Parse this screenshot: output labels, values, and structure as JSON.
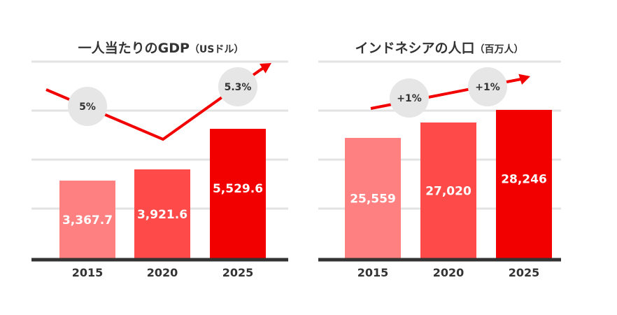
{
  "chart_data": [
    {
      "type": "bar",
      "title": "一人当たりのGDP",
      "unit": "（USドル）",
      "categories": [
        "2015",
        "2020",
        "2025"
      ],
      "values": [
        3367.7,
        3921.6,
        5529.6
      ],
      "value_labels": [
        "3,367.7",
        "3,921.6",
        "5,529.6"
      ],
      "bar_colors": [
        "#ff8080",
        "#ff4a4a",
        "#f20000"
      ],
      "growth_line": {
        "color": "#f20000",
        "badges": [
          "5%",
          "5.3%"
        ]
      },
      "grid": true
    },
    {
      "type": "bar",
      "title": "インドネシアの人口",
      "unit": "（百万人）",
      "categories": [
        "2015",
        "2020",
        "2025"
      ],
      "values": [
        25559,
        27020,
        28246
      ],
      "value_labels": [
        "25,559",
        "27,020",
        "28,246"
      ],
      "bar_colors": [
        "#ff8080",
        "#ff4a4a",
        "#f20000"
      ],
      "growth_line": {
        "color": "#f20000",
        "badges": [
          "+1%",
          "+1%"
        ]
      },
      "grid": true
    }
  ]
}
